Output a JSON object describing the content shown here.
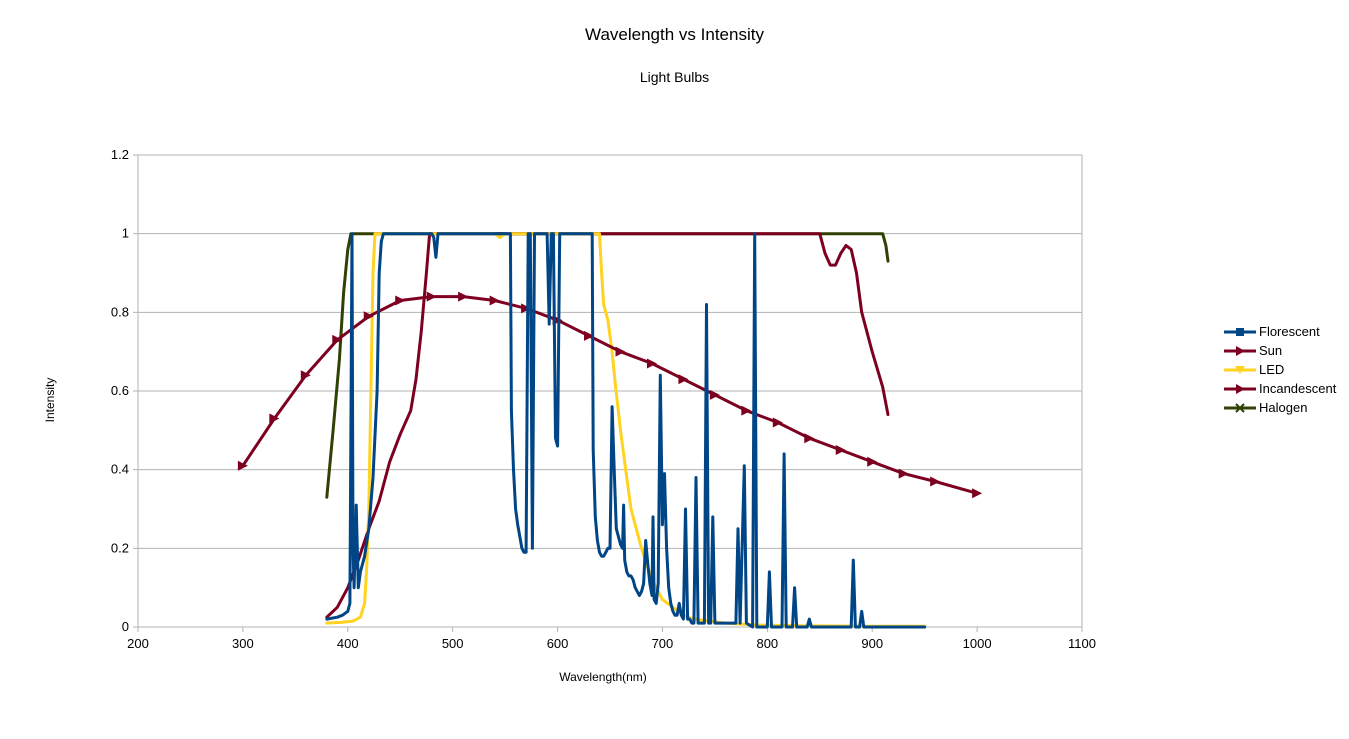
{
  "chart_data": {
    "type": "line",
    "title": "Wavelength vs Intensity",
    "subtitle": "Light Bulbs",
    "xlabel": "Wavelength(nm)",
    "ylabel": "Intensity",
    "xlim": [
      200,
      1100
    ],
    "ylim": [
      0,
      1.2
    ],
    "x_ticks": [
      "200",
      "300",
      "400",
      "500",
      "600",
      "700",
      "800",
      "900",
      "1000",
      "1100"
    ],
    "y_ticks": [
      "0",
      "0.2",
      "0.4",
      "0.6",
      "0.8",
      "1",
      "1.2"
    ],
    "grid": true,
    "legend_position": "right",
    "series": [
      {
        "name": "Florescent",
        "color": "#004586",
        "marker": "square",
        "points": [
          [
            380,
            0.02
          ],
          [
            390,
            0.025
          ],
          [
            395,
            0.03
          ],
          [
            400,
            0.04
          ],
          [
            402,
            0.06
          ],
          [
            404,
            1.0
          ],
          [
            405,
            0.2
          ],
          [
            406,
            0.1
          ],
          [
            408,
            0.31
          ],
          [
            410,
            0.1
          ],
          [
            412,
            0.14
          ],
          [
            416,
            0.18
          ],
          [
            420,
            0.25
          ],
          [
            424,
            0.38
          ],
          [
            428,
            0.6
          ],
          [
            430,
            0.9
          ],
          [
            432,
            0.98
          ],
          [
            434,
            1.0
          ],
          [
            480,
            1.0
          ],
          [
            482,
            0.99
          ],
          [
            484,
            0.94
          ],
          [
            486,
            1.0
          ],
          [
            555,
            1.0
          ],
          [
            556,
            0.55
          ],
          [
            558,
            0.4
          ],
          [
            560,
            0.3
          ],
          [
            562,
            0.26
          ],
          [
            564,
            0.23
          ],
          [
            566,
            0.2
          ],
          [
            568,
            0.19
          ],
          [
            570,
            0.19
          ],
          [
            572,
            1.0
          ],
          [
            574,
            1.0
          ],
          [
            576,
            0.2
          ],
          [
            578,
            1.0
          ],
          [
            590,
            1.0
          ],
          [
            592,
            0.77
          ],
          [
            594,
            1.0
          ],
          [
            596,
            1.0
          ],
          [
            598,
            0.48
          ],
          [
            600,
            0.46
          ],
          [
            602,
            1.0
          ],
          [
            633,
            1.0
          ],
          [
            634,
            0.45
          ],
          [
            636,
            0.28
          ],
          [
            638,
            0.22
          ],
          [
            640,
            0.19
          ],
          [
            642,
            0.18
          ],
          [
            644,
            0.18
          ],
          [
            646,
            0.19
          ],
          [
            648,
            0.2
          ],
          [
            650,
            0.2
          ],
          [
            652,
            0.56
          ],
          [
            654,
            0.4
          ],
          [
            656,
            0.25
          ],
          [
            658,
            0.23
          ],
          [
            660,
            0.21
          ],
          [
            662,
            0.2
          ],
          [
            663,
            0.31
          ],
          [
            664,
            0.17
          ],
          [
            666,
            0.14
          ],
          [
            668,
            0.13
          ],
          [
            670,
            0.13
          ],
          [
            672,
            0.12
          ],
          [
            674,
            0.1
          ],
          [
            676,
            0.09
          ],
          [
            678,
            0.08
          ],
          [
            680,
            0.09
          ],
          [
            682,
            0.11
          ],
          [
            684,
            0.22
          ],
          [
            686,
            0.16
          ],
          [
            688,
            0.11
          ],
          [
            690,
            0.08
          ],
          [
            691,
            0.28
          ],
          [
            692,
            0.07
          ],
          [
            694,
            0.06
          ],
          [
            696,
            0.11
          ],
          [
            698,
            0.64
          ],
          [
            700,
            0.26
          ],
          [
            702,
            0.39
          ],
          [
            704,
            0.2
          ],
          [
            706,
            0.1
          ],
          [
            708,
            0.06
          ],
          [
            710,
            0.04
          ],
          [
            712,
            0.03
          ],
          [
            714,
            0.03
          ],
          [
            716,
            0.06
          ],
          [
            718,
            0.03
          ],
          [
            720,
            0.02
          ],
          [
            722,
            0.3
          ],
          [
            724,
            0.02
          ],
          [
            726,
            0.02
          ],
          [
            728,
            0.01
          ],
          [
            730,
            0.01
          ],
          [
            732,
            0.38
          ],
          [
            734,
            0.01
          ],
          [
            736,
            0.01
          ],
          [
            738,
            0.01
          ],
          [
            740,
            0.01
          ],
          [
            742,
            0.82
          ],
          [
            744,
            0.01
          ],
          [
            746,
            0.01
          ],
          [
            748,
            0.28
          ],
          [
            750,
            0.01
          ],
          [
            770,
            0.01
          ],
          [
            772,
            0.25
          ],
          [
            774,
            0.01
          ],
          [
            778,
            0.41
          ],
          [
            780,
            0.01
          ],
          [
            786,
            0.0
          ],
          [
            788,
            1.0
          ],
          [
            790,
            0.0
          ],
          [
            800,
            0.0
          ],
          [
            802,
            0.14
          ],
          [
            804,
            0.0
          ],
          [
            814,
            0.0
          ],
          [
            816,
            0.44
          ],
          [
            818,
            0.0
          ],
          [
            824,
            0.0
          ],
          [
            826,
            0.1
          ],
          [
            828,
            0.0
          ],
          [
            838,
            0.0
          ],
          [
            840,
            0.02
          ],
          [
            842,
            0.0
          ],
          [
            880,
            0.0
          ],
          [
            882,
            0.17
          ],
          [
            884,
            0.0
          ],
          [
            888,
            0.0
          ],
          [
            890,
            0.04
          ],
          [
            892,
            0.0
          ],
          [
            950,
            0.0
          ]
        ]
      },
      {
        "name": "Sun",
        "color": "#7e0021",
        "marker": "triangle",
        "points": [
          [
            300,
            0.41
          ],
          [
            330,
            0.53
          ],
          [
            360,
            0.64
          ],
          [
            390,
            0.73
          ],
          [
            420,
            0.79
          ],
          [
            450,
            0.83
          ],
          [
            480,
            0.84
          ],
          [
            510,
            0.84
          ],
          [
            540,
            0.83
          ],
          [
            570,
            0.81
          ],
          [
            600,
            0.78
          ],
          [
            630,
            0.74
          ],
          [
            660,
            0.7
          ],
          [
            690,
            0.67
          ],
          [
            720,
            0.63
          ],
          [
            750,
            0.59
          ],
          [
            780,
            0.55
          ],
          [
            810,
            0.52
          ],
          [
            840,
            0.48
          ],
          [
            870,
            0.45
          ],
          [
            900,
            0.42
          ],
          [
            930,
            0.39
          ],
          [
            960,
            0.37
          ],
          [
            1000,
            0.34
          ]
        ]
      },
      {
        "name": "LED",
        "color": "#ffd320",
        "marker": "triangle-down",
        "points": [
          [
            380,
            0.01
          ],
          [
            395,
            0.012
          ],
          [
            405,
            0.015
          ],
          [
            412,
            0.025
          ],
          [
            416,
            0.06
          ],
          [
            418,
            0.15
          ],
          [
            420,
            0.3
          ],
          [
            422,
            0.6
          ],
          [
            424,
            0.9
          ],
          [
            426,
            1.0
          ],
          [
            540,
            1.0
          ],
          [
            545,
            0.99
          ],
          [
            550,
            1.0
          ],
          [
            640,
            1.0
          ],
          [
            642,
            0.9
          ],
          [
            644,
            0.82
          ],
          [
            646,
            0.8
          ],
          [
            648,
            0.78
          ],
          [
            650,
            0.74
          ],
          [
            652,
            0.7
          ],
          [
            655,
            0.62
          ],
          [
            660,
            0.5
          ],
          [
            665,
            0.4
          ],
          [
            670,
            0.3
          ],
          [
            680,
            0.2
          ],
          [
            690,
            0.12
          ],
          [
            700,
            0.07
          ],
          [
            710,
            0.05
          ],
          [
            720,
            0.03
          ],
          [
            730,
            0.02
          ],
          [
            745,
            0.015
          ],
          [
            760,
            0.01
          ],
          [
            790,
            0.005
          ],
          [
            830,
            0.003
          ],
          [
            900,
            0.002
          ],
          [
            950,
            0.002
          ]
        ]
      },
      {
        "name": "Incandescent",
        "color": "#7e0021",
        "marker": "triangle",
        "points": [
          [
            380,
            0.025
          ],
          [
            390,
            0.05
          ],
          [
            400,
            0.1
          ],
          [
            410,
            0.17
          ],
          [
            420,
            0.25
          ],
          [
            430,
            0.32
          ],
          [
            440,
            0.42
          ],
          [
            450,
            0.49
          ],
          [
            460,
            0.55
          ],
          [
            465,
            0.63
          ],
          [
            470,
            0.75
          ],
          [
            475,
            0.9
          ],
          [
            478,
            1.0
          ],
          [
            850,
            1.0
          ],
          [
            855,
            0.95
          ],
          [
            860,
            0.92
          ],
          [
            865,
            0.92
          ],
          [
            870,
            0.95
          ],
          [
            875,
            0.97
          ],
          [
            880,
            0.96
          ],
          [
            885,
            0.9
          ],
          [
            890,
            0.8
          ],
          [
            900,
            0.7
          ],
          [
            910,
            0.61
          ],
          [
            915,
            0.54
          ]
        ]
      },
      {
        "name": "Halogen",
        "color": "#314004",
        "marker": "x",
        "points": [
          [
            380,
            0.33
          ],
          [
            386,
            0.5
          ],
          [
            392,
            0.68
          ],
          [
            396,
            0.85
          ],
          [
            400,
            0.96
          ],
          [
            403,
            1.0
          ],
          [
            910,
            1.0
          ],
          [
            913,
            0.97
          ],
          [
            915,
            0.93
          ]
        ]
      }
    ]
  }
}
